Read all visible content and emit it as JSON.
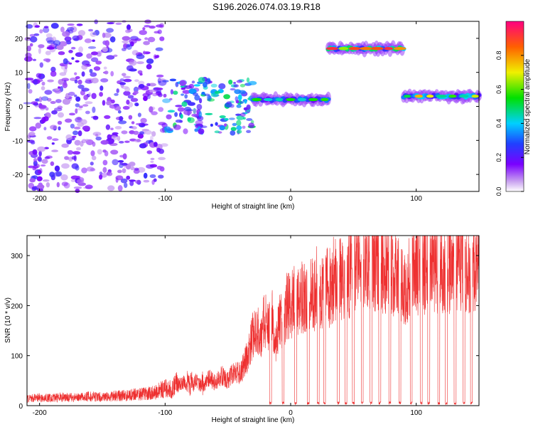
{
  "title": "S196.2026.074.03.19.R18",
  "chart_data": [
    {
      "type": "heatmap",
      "xlabel": "Height of straight line (km)",
      "ylabel": "Frequency (Hz)",
      "xlim": [
        -210,
        150
      ],
      "ylim": [
        -25,
        25
      ],
      "xticks": [
        -200,
        -100,
        0,
        100
      ],
      "xtick_labels": [
        "-200",
        "-100",
        "0",
        "100"
      ],
      "yticks": [
        -20,
        -10,
        0,
        10,
        20
      ],
      "ytick_labels": [
        "-20",
        "-10",
        "0",
        "10",
        "20"
      ],
      "colorbar": {
        "label": "Normalized spectral amplitude",
        "range": [
          0,
          1
        ],
        "ticks": [
          0.0,
          0.2,
          0.4,
          0.6,
          0.8
        ],
        "tick_labels": [
          "0.0",
          "0.2",
          "0.4",
          "0.6",
          "0.8"
        ],
        "colormap": "rainbow (purple-blue-cyan-green-yellow-red)"
      },
      "features": [
        {
          "name": "noise field",
          "x_range": [
            -210,
            -100
          ],
          "freq_range": [
            -25,
            25
          ],
          "amplitude": 0.15
        },
        {
          "name": "transition",
          "x_range": [
            -100,
            -30
          ],
          "freq_range": [
            -8,
            8
          ],
          "amplitude": 0.3
        },
        {
          "name": "signal track 1",
          "x_range": [
            -30,
            30
          ],
          "freq": 2,
          "amplitude": 0.6
        },
        {
          "name": "signal track 2",
          "x_range": [
            30,
            90
          ],
          "freq": 17,
          "amplitude": 0.9
        },
        {
          "name": "signal track 3",
          "x_range": [
            90,
            150
          ],
          "freq": 3,
          "amplitude": 0.75
        }
      ]
    },
    {
      "type": "line",
      "xlabel": "Height of straight line (km)",
      "ylabel": "SNR (10 * v/v)",
      "xlim": [
        -210,
        150
      ],
      "ylim": [
        0,
        340
      ],
      "xticks": [
        -200,
        -100,
        0,
        100
      ],
      "xtick_labels": [
        "-200",
        "-100",
        "0",
        "100"
      ],
      "yticks": [
        0,
        100,
        200,
        300
      ],
      "ytick_labels": [
        "0",
        "100",
        "200",
        "300"
      ],
      "color": "#ee3030",
      "series": [
        {
          "name": "SNR",
          "x": [
            -210,
            -200,
            -190,
            -180,
            -170,
            -160,
            -150,
            -140,
            -130,
            -120,
            -110,
            -100,
            -95,
            -90,
            -85,
            -80,
            -75,
            -70,
            -65,
            -60,
            -55,
            -50,
            -45,
            -40,
            -35,
            -30,
            -27,
            -24,
            -21,
            -18,
            -15,
            -12,
            -9,
            -6,
            -3,
            0,
            3,
            6,
            9,
            12,
            15,
            18,
            21,
            24,
            27,
            30,
            35,
            40,
            45,
            50,
            55,
            60,
            65,
            70,
            75,
            80,
            85,
            90,
            95,
            100,
            105,
            110,
            115,
            120,
            125,
            130,
            135,
            140,
            145,
            150
          ],
          "y": [
            12,
            14,
            13,
            15,
            14,
            16,
            15,
            17,
            18,
            20,
            22,
            30,
            28,
            40,
            45,
            35,
            50,
            38,
            55,
            45,
            60,
            50,
            70,
            65,
            95,
            140,
            160,
            130,
            175,
            150,
            190,
            120,
            185,
            140,
            200,
            195,
            215,
            205,
            225,
            210,
            230,
            215,
            240,
            225,
            245,
            235,
            255,
            250,
            270,
            260,
            285,
            300,
            275,
            290,
            265,
            280,
            255,
            230,
            260,
            265,
            275,
            270,
            285,
            280,
            275,
            290,
            285,
            270,
            280,
            285
          ]
        }
      ],
      "dropouts_x": [
        -16,
        -6,
        4,
        14,
        22,
        27,
        38,
        44,
        50,
        57,
        64,
        71,
        79,
        87,
        96,
        104,
        110,
        118,
        124,
        131,
        138,
        144
      ]
    }
  ]
}
